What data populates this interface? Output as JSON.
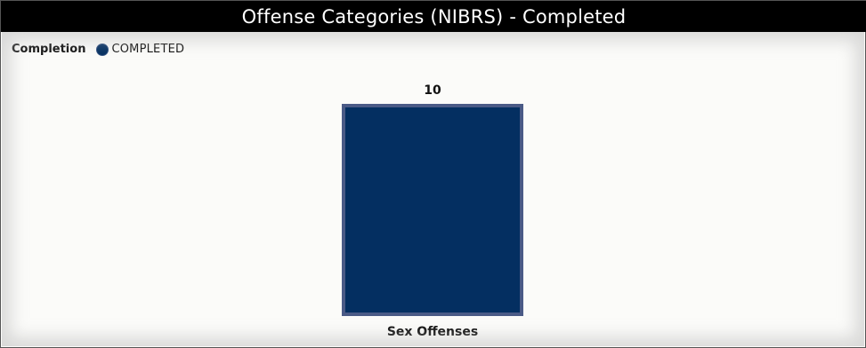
{
  "title": "Offense Categories (NIBRS) - Completed",
  "legend": {
    "title": "Completion",
    "items": [
      {
        "label": "COMPLETED",
        "color": "#042f61"
      }
    ]
  },
  "colors": {
    "bar_fill": "#042f61",
    "bar_border": "#4a5a86"
  },
  "chart_data": {
    "type": "bar",
    "categories": [
      "Sex Offenses"
    ],
    "series": [
      {
        "name": "COMPLETED",
        "values": [
          10
        ]
      }
    ],
    "data_labels": [
      "10"
    ],
    "ylim": [
      0,
      10
    ],
    "grid": false,
    "legend_position": "top-left"
  }
}
